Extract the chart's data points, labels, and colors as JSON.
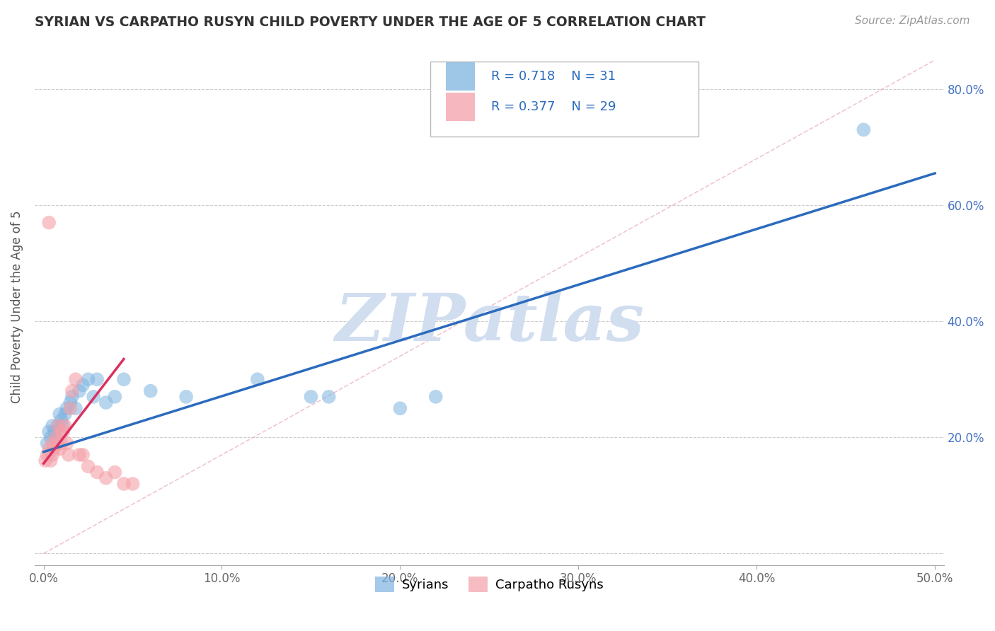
{
  "title": "SYRIAN VS CARPATHO RUSYN CHILD POVERTY UNDER THE AGE OF 5 CORRELATION CHART",
  "source_text": "Source: ZipAtlas.com",
  "ylabel": "Child Poverty Under the Age of 5",
  "xlim": [
    -0.005,
    0.505
  ],
  "ylim": [
    -0.02,
    0.87
  ],
  "xticks": [
    0.0,
    0.1,
    0.2,
    0.3,
    0.4,
    0.5
  ],
  "yticks": [
    0.0,
    0.2,
    0.4,
    0.6,
    0.8
  ],
  "xticklabels": [
    "0.0%",
    "10.0%",
    "20.0%",
    "30.0%",
    "40.0%",
    "50.0%"
  ],
  "left_yticklabels": [
    "",
    "",
    "",
    "",
    ""
  ],
  "right_yticklabels": [
    "",
    "20.0%",
    "40.0%",
    "60.0%",
    "80.0%"
  ],
  "legend_r1": "R = 0.718",
  "legend_n1": "N = 31",
  "legend_r2": "R = 0.377",
  "legend_n2": "N = 29",
  "legend_label1": "Syrians",
  "legend_label2": "Carpatho Rusyns",
  "color_blue": "#7EB3E0",
  "color_pink": "#F4A0A8",
  "color_blue_line": "#2B6BBD",
  "color_pink_line": "#D93060",
  "color_legend_blue": "#2B6BBD",
  "color_right_axis": "#4472C4",
  "watermark_color": "#D0DEF0",
  "watermark": "ZIPatlas",
  "blue_scatter_x": [
    0.002,
    0.003,
    0.004,
    0.005,
    0.006,
    0.007,
    0.008,
    0.009,
    0.01,
    0.011,
    0.012,
    0.013,
    0.015,
    0.016,
    0.018,
    0.02,
    0.022,
    0.025,
    0.028,
    0.03,
    0.035,
    0.04,
    0.045,
    0.06,
    0.08,
    0.12,
    0.15,
    0.16,
    0.2,
    0.22,
    0.46
  ],
  "blue_scatter_y": [
    0.19,
    0.21,
    0.2,
    0.22,
    0.21,
    0.2,
    0.22,
    0.24,
    0.23,
    0.22,
    0.24,
    0.25,
    0.26,
    0.27,
    0.25,
    0.28,
    0.29,
    0.3,
    0.27,
    0.3,
    0.26,
    0.27,
    0.3,
    0.28,
    0.27,
    0.3,
    0.27,
    0.27,
    0.25,
    0.27,
    0.73
  ],
  "pink_scatter_x": [
    0.001,
    0.002,
    0.003,
    0.004,
    0.005,
    0.005,
    0.006,
    0.007,
    0.008,
    0.008,
    0.009,
    0.01,
    0.01,
    0.011,
    0.012,
    0.013,
    0.014,
    0.015,
    0.016,
    0.018,
    0.02,
    0.022,
    0.025,
    0.03,
    0.035,
    0.04,
    0.045,
    0.05,
    0.003
  ],
  "pink_scatter_y": [
    0.16,
    0.17,
    0.18,
    0.16,
    0.17,
    0.19,
    0.18,
    0.2,
    0.19,
    0.22,
    0.18,
    0.19,
    0.21,
    0.21,
    0.22,
    0.19,
    0.17,
    0.25,
    0.28,
    0.3,
    0.17,
    0.17,
    0.15,
    0.14,
    0.13,
    0.14,
    0.12,
    0.12,
    0.57
  ],
  "blue_line_x": [
    0.0,
    0.5
  ],
  "blue_line_y": [
    0.175,
    0.655
  ],
  "pink_line_x": [
    0.0,
    0.045
  ],
  "pink_line_y": [
    0.155,
    0.335
  ],
  "ref_line_x": [
    0.0,
    0.5
  ],
  "ref_line_y": [
    0.0,
    0.85
  ]
}
